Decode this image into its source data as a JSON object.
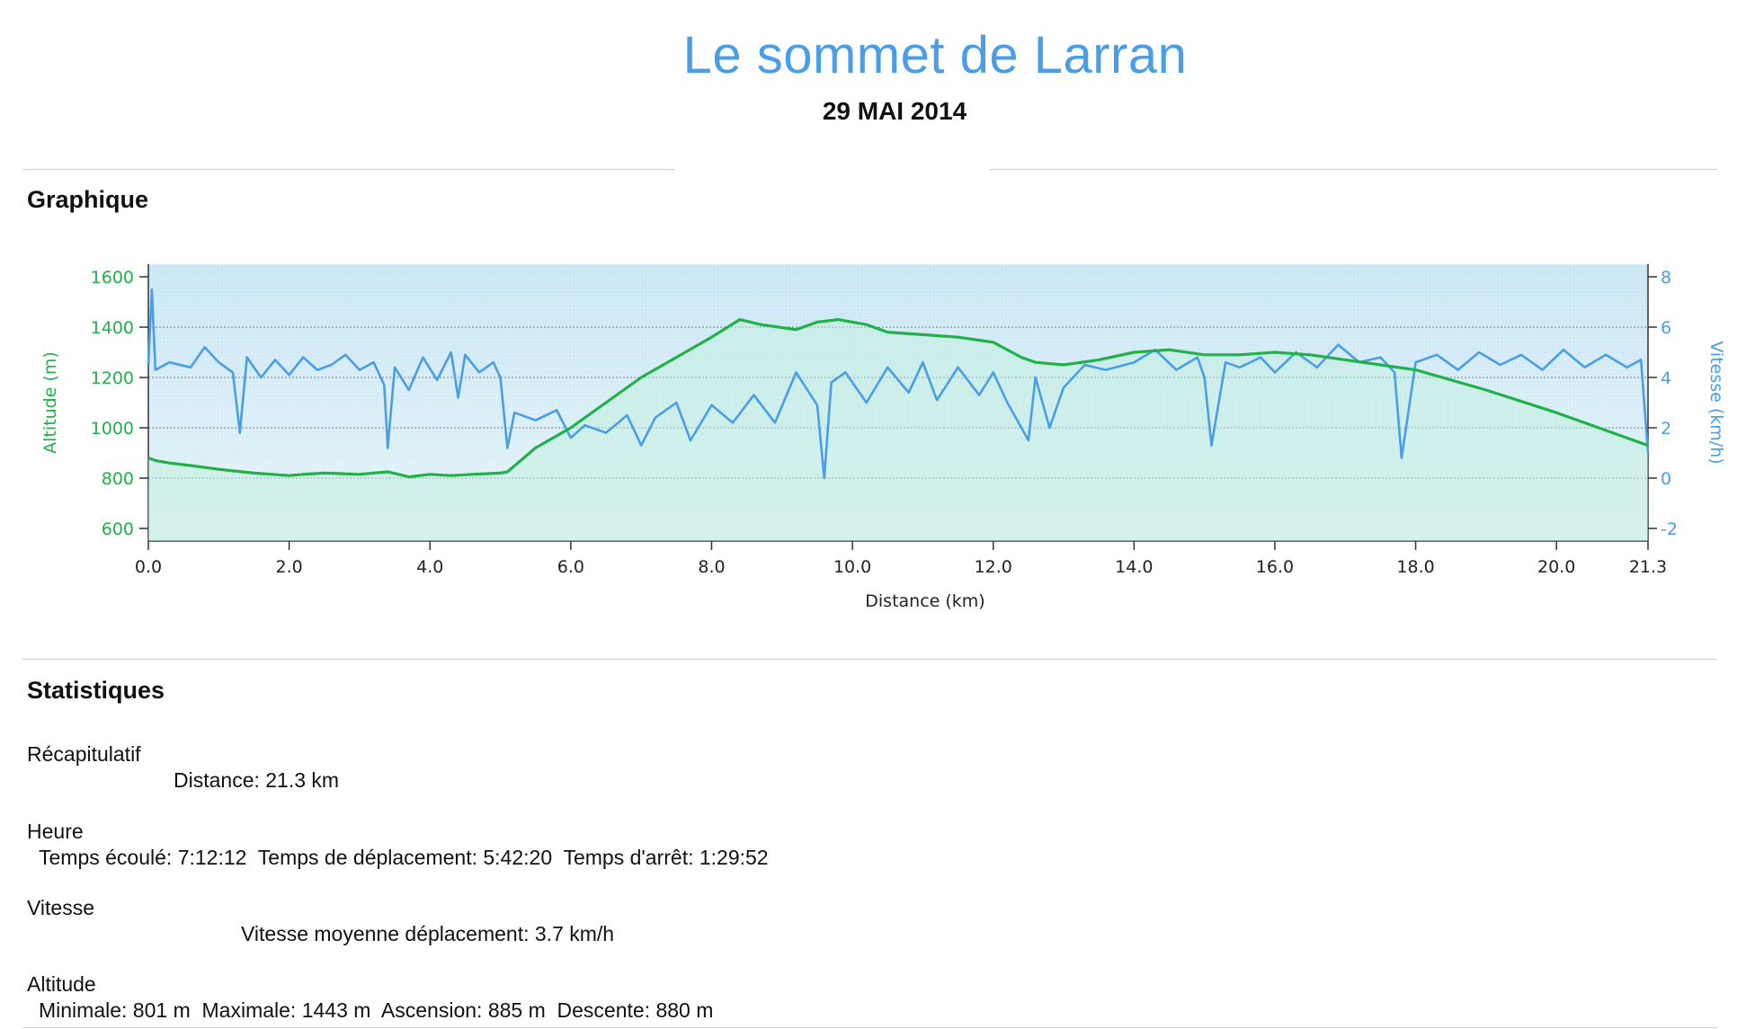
{
  "header": {
    "title": "Le sommet de Larran",
    "date": "29 MAI 2014"
  },
  "sections": {
    "graph_title": "Graphique",
    "stats_title": "Statistiques"
  },
  "stats": {
    "summary_label": "Récapitulatif",
    "distance": "Distance: 21.3 km",
    "time_label": "Heure",
    "time_line": "Temps écoulé: 7:12:12  Temps de déplacement: 5:42:20  Temps d'arrêt: 1:29:52",
    "speed_label": "Vitesse",
    "speed_line": "Vitesse moyenne déplacement: 3.7 km/h",
    "altitude_label": "Altitude",
    "altitude_line": "Minimale: 801 m  Maximale: 1443 m  Ascension: 885 m  Descente: 880 m"
  },
  "colors": {
    "altitude": "#22b04b",
    "speed": "#4a9ee6",
    "title": "#4a9ee6"
  },
  "chart_data": {
    "type": "line",
    "xlabel": "Distance   (km)",
    "ylabel_left": "Altitude (m)",
    "ylabel_right": "Vitesse (km/h)",
    "xlim": [
      0,
      21.3
    ],
    "ylim_left": [
      600,
      1600
    ],
    "ylim_right": [
      -2,
      8
    ],
    "x_ticks": [
      "0.0",
      "2.0",
      "4.0",
      "6.0",
      "8.0",
      "10.0",
      "12.0",
      "14.0",
      "16.0",
      "18.0",
      "20.0",
      "21.3"
    ],
    "y_ticks_left": [
      "1600",
      "1400",
      "1200",
      "1000",
      "800",
      "600"
    ],
    "y_ticks_right": [
      "8",
      "6",
      "4",
      "2",
      "0",
      "-2"
    ],
    "grid": true,
    "series": [
      {
        "name": "Altitude (m)",
        "axis": "left",
        "x": [
          0.0,
          0.1,
          0.3,
          0.6,
          1.0,
          1.5,
          2.0,
          2.2,
          2.5,
          3.0,
          3.4,
          3.7,
          4.0,
          4.3,
          4.6,
          5.0,
          5.1,
          5.5,
          6.0,
          6.5,
          7.0,
          7.5,
          8.0,
          8.4,
          8.7,
          9.2,
          9.5,
          9.8,
          10.2,
          10.5,
          11.0,
          11.5,
          12.0,
          12.4,
          12.6,
          13.0,
          13.5,
          14.0,
          14.5,
          15.0,
          15.5,
          16.0,
          16.5,
          17.0,
          17.5,
          18.0,
          19.0,
          20.0,
          21.0,
          21.3
        ],
        "y": [
          880,
          870,
          860,
          850,
          835,
          820,
          810,
          815,
          820,
          815,
          825,
          805,
          815,
          810,
          815,
          820,
          825,
          920,
          1000,
          1100,
          1200,
          1280,
          1360,
          1430,
          1410,
          1390,
          1420,
          1430,
          1410,
          1380,
          1370,
          1360,
          1340,
          1280,
          1260,
          1250,
          1270,
          1300,
          1310,
          1290,
          1290,
          1300,
          1290,
          1270,
          1250,
          1230,
          1150,
          1060,
          960,
          930
        ]
      },
      {
        "name": "Vitesse (km/h)",
        "axis": "right",
        "x": [
          0.0,
          0.05,
          0.1,
          0.3,
          0.6,
          0.8,
          1.0,
          1.2,
          1.3,
          1.4,
          1.6,
          1.8,
          2.0,
          2.2,
          2.4,
          2.6,
          2.8,
          3.0,
          3.2,
          3.35,
          3.4,
          3.5,
          3.7,
          3.9,
          4.1,
          4.3,
          4.4,
          4.5,
          4.7,
          4.9,
          5.0,
          5.1,
          5.2,
          5.5,
          5.8,
          6.0,
          6.2,
          6.5,
          6.8,
          7.0,
          7.2,
          7.5,
          7.7,
          8.0,
          8.3,
          8.6,
          8.9,
          9.2,
          9.5,
          9.6,
          9.7,
          9.9,
          10.2,
          10.5,
          10.8,
          11.0,
          11.2,
          11.5,
          11.8,
          12.0,
          12.2,
          12.5,
          12.6,
          12.8,
          13.0,
          13.3,
          13.6,
          14.0,
          14.3,
          14.6,
          14.9,
          15.0,
          15.1,
          15.3,
          15.5,
          15.8,
          16.0,
          16.3,
          16.6,
          16.9,
          17.2,
          17.5,
          17.7,
          17.8,
          18.0,
          18.3,
          18.6,
          18.9,
          19.2,
          19.5,
          19.8,
          20.1,
          20.4,
          20.7,
          21.0,
          21.2,
          21.3
        ],
        "y": [
          4.5,
          7.5,
          4.3,
          4.6,
          4.4,
          5.2,
          4.6,
          4.2,
          1.8,
          4.8,
          4.0,
          4.7,
          4.1,
          4.8,
          4.3,
          4.5,
          4.9,
          4.3,
          4.6,
          3.7,
          1.2,
          4.4,
          3.5,
          4.8,
          3.9,
          5.0,
          3.2,
          4.9,
          4.2,
          4.6,
          4.0,
          1.2,
          2.6,
          2.3,
          2.7,
          1.6,
          2.1,
          1.8,
          2.5,
          1.3,
          2.4,
          3.0,
          1.5,
          2.9,
          2.2,
          3.3,
          2.2,
          4.2,
          2.9,
          0.0,
          3.8,
          4.2,
          3.0,
          4.4,
          3.4,
          4.6,
          3.1,
          4.4,
          3.3,
          4.2,
          3.0,
          1.5,
          4.0,
          2.0,
          3.6,
          4.5,
          4.3,
          4.6,
          5.1,
          4.3,
          4.8,
          4.0,
          1.3,
          4.6,
          4.4,
          4.8,
          4.2,
          5.0,
          4.4,
          5.3,
          4.6,
          4.8,
          4.2,
          0.8,
          4.6,
          4.9,
          4.3,
          5.0,
          4.5,
          4.9,
          4.3,
          5.1,
          4.4,
          4.9,
          4.4,
          4.7,
          1.0
        ]
      }
    ]
  }
}
